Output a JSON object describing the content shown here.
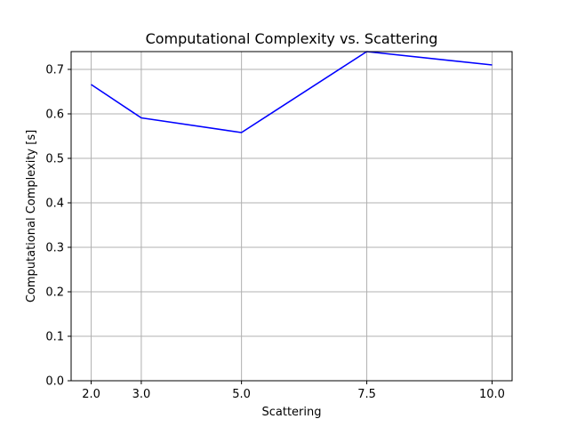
{
  "chart_data": {
    "type": "line",
    "title": "Computational Complexity vs. Scattering",
    "xlabel": "Scattering",
    "ylabel": "Computational Complexity [s]",
    "x": [
      2.0,
      3.0,
      5.0,
      7.5,
      10.0
    ],
    "x_tick_labels": [
      "2.0",
      "3.0",
      "5.0",
      "7.5",
      "10.0"
    ],
    "y_ticks": [
      0.0,
      0.1,
      0.2,
      0.3,
      0.4,
      0.5,
      0.6,
      0.7
    ],
    "y_tick_labels": [
      "0.0",
      "0.1",
      "0.2",
      "0.3",
      "0.4",
      "0.5",
      "0.6",
      "0.7"
    ],
    "xlim": [
      1.6,
      10.4
    ],
    "ylim": [
      0.0,
      0.74
    ],
    "grid": true,
    "series": [
      {
        "values": [
          0.666,
          0.591,
          0.558,
          0.74,
          0.71
        ],
        "color": "#0000ff"
      }
    ]
  }
}
